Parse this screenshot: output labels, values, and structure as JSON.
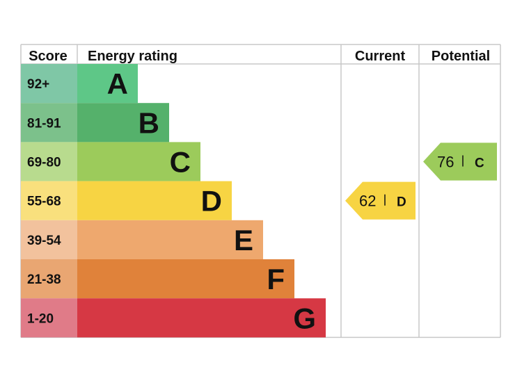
{
  "chart_data": {
    "type": "bar",
    "headers": {
      "score": "Score",
      "rating": "Energy rating",
      "current": "Current",
      "potential": "Potential"
    },
    "bands": [
      {
        "letter": "A",
        "range": "92+",
        "color": "#5ec787",
        "score_color": "#7fc7a6"
      },
      {
        "letter": "B",
        "range": "81-91",
        "color": "#55b16b",
        "score_color": "#7cc18b"
      },
      {
        "letter": "C",
        "range": "69-80",
        "color": "#9ccb5b",
        "score_color": "#b8db8e"
      },
      {
        "letter": "D",
        "range": "55-68",
        "color": "#f7d443",
        "score_color": "#f9e07d"
      },
      {
        "letter": "E",
        "range": "39-54",
        "color": "#eea86e",
        "score_color": "#f2c29d"
      },
      {
        "letter": "F",
        "range": "21-38",
        "color": "#e0823a",
        "score_color": "#e9a672"
      },
      {
        "letter": "G",
        "range": "1-20",
        "color": "#d63844",
        "score_color": "#e07b88"
      }
    ],
    "current": {
      "value": "62",
      "letter": "D",
      "color": "#f7d443"
    },
    "potential": {
      "value": "76",
      "letter": "C",
      "color": "#9ccb5b"
    }
  }
}
